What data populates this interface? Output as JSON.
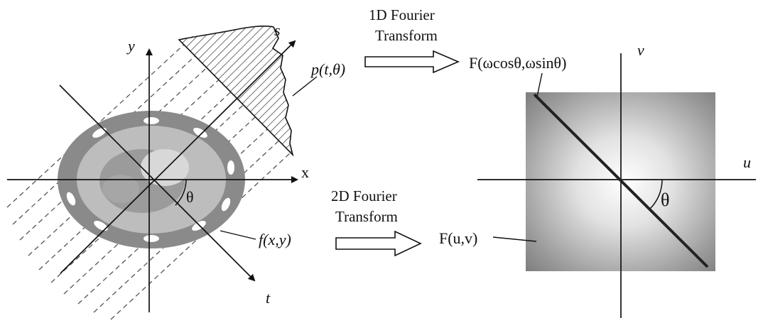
{
  "labels": {
    "axis_y_left": "y",
    "axis_x_left": "x",
    "axis_s": "s",
    "axis_t": "t",
    "theta_left": "θ",
    "projection": "p(t,θ)",
    "object": "f(x,y)",
    "axis_v": "v",
    "axis_u": "u",
    "theta_right": "θ",
    "slice": "F(ωcosθ,ωsinθ)",
    "spectrum": "F(u,v)"
  },
  "transforms": {
    "top_line1": "1D Fourier",
    "top_line2": "Transform",
    "bottom_line1": "2D Fourier",
    "bottom_line2": "Transform"
  }
}
